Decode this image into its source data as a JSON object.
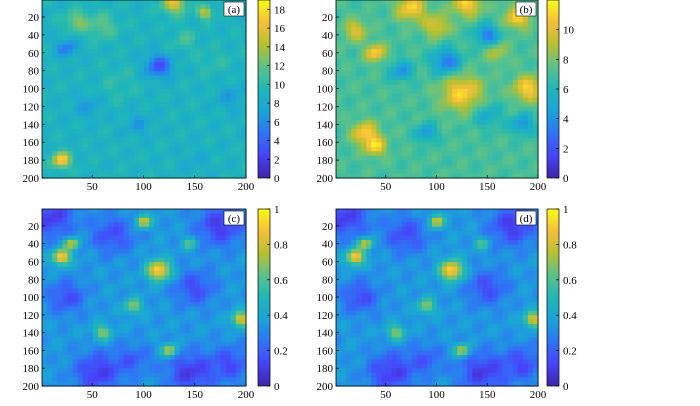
{
  "chart_data": [
    {
      "type": "heatmap",
      "panel_label": "(a)",
      "x_ticks": [
        50,
        100,
        150,
        200
      ],
      "y_ticks": [
        20,
        40,
        60,
        80,
        100,
        120,
        140,
        160,
        180,
        200
      ],
      "xlim": [
        1,
        200
      ],
      "ylim": [
        1,
        200
      ],
      "colorbar": {
        "min": 0,
        "max": 19,
        "ticks": [
          0,
          2,
          4,
          6,
          8,
          10,
          12,
          14,
          16,
          18
        ]
      },
      "base_value": 9,
      "features": [
        {
          "x": 20,
          "y": 180,
          "radius": 6,
          "value": 18
        },
        {
          "x": 130,
          "y": 5,
          "radius": 8,
          "value": 16
        },
        {
          "x": 160,
          "y": 15,
          "radius": 5,
          "value": 15
        },
        {
          "x": 35,
          "y": 25,
          "radius": 8,
          "value": 13
        },
        {
          "x": 60,
          "y": 30,
          "radius": 10,
          "value": 12
        },
        {
          "x": 140,
          "y": 45,
          "radius": 8,
          "value": 11
        },
        {
          "x": 115,
          "y": 75,
          "radius": 9,
          "value": 3
        },
        {
          "x": 25,
          "y": 55,
          "radius": 7,
          "value": 5
        },
        {
          "x": 45,
          "y": 120,
          "radius": 10,
          "value": 7
        },
        {
          "x": 95,
          "y": 140,
          "radius": 9,
          "value": 7
        },
        {
          "x": 185,
          "y": 110,
          "radius": 10,
          "value": 7
        },
        {
          "x": 150,
          "y": 180,
          "radius": 10,
          "value": 8
        },
        {
          "x": 75,
          "y": 95,
          "radius": 14,
          "value": 10
        },
        {
          "x": 170,
          "y": 70,
          "radius": 12,
          "value": 10
        }
      ]
    },
    {
      "type": "heatmap",
      "panel_label": "(b)",
      "x_ticks": [
        50,
        100,
        150,
        200
      ],
      "y_ticks": [
        20,
        40,
        60,
        80,
        100,
        120,
        140,
        160,
        180,
        200
      ],
      "xlim": [
        1,
        200
      ],
      "ylim": [
        1,
        200
      ],
      "colorbar": {
        "min": 0,
        "max": 12,
        "ticks": [
          0,
          2,
          4,
          6,
          8,
          10
        ]
      },
      "base_value": 7,
      "features": [
        {
          "x": 75,
          "y": 10,
          "radius": 10,
          "value": 11
        },
        {
          "x": 130,
          "y": 5,
          "radius": 10,
          "value": 11
        },
        {
          "x": 180,
          "y": 20,
          "radius": 9,
          "value": 11
        },
        {
          "x": 20,
          "y": 35,
          "radius": 8,
          "value": 10
        },
        {
          "x": 100,
          "y": 30,
          "radius": 9,
          "value": 10
        },
        {
          "x": 40,
          "y": 60,
          "radius": 7,
          "value": 11
        },
        {
          "x": 125,
          "y": 105,
          "radius": 14,
          "value": 11
        },
        {
          "x": 190,
          "y": 100,
          "radius": 10,
          "value": 11
        },
        {
          "x": 30,
          "y": 150,
          "radius": 9,
          "value": 11
        },
        {
          "x": 40,
          "y": 165,
          "radius": 7,
          "value": 11
        },
        {
          "x": 160,
          "y": 60,
          "radius": 8,
          "value": 9
        },
        {
          "x": 150,
          "y": 40,
          "radius": 8,
          "value": 3
        },
        {
          "x": 110,
          "y": 70,
          "radius": 10,
          "value": 3
        },
        {
          "x": 65,
          "y": 80,
          "radius": 8,
          "value": 4
        },
        {
          "x": 90,
          "y": 150,
          "radius": 7,
          "value": 4
        },
        {
          "x": 185,
          "y": 140,
          "radius": 8,
          "value": 4
        },
        {
          "x": 150,
          "y": 130,
          "radius": 10,
          "value": 5
        }
      ]
    },
    {
      "type": "heatmap",
      "panel_label": "(c)",
      "x_ticks": [
        50,
        100,
        150,
        200
      ],
      "y_ticks": [
        20,
        40,
        60,
        80,
        100,
        120,
        140,
        160,
        180,
        200
      ],
      "xlim": [
        1,
        200
      ],
      "ylim": [
        1,
        200
      ],
      "colorbar": {
        "min": 0,
        "max": 1,
        "ticks": [
          0,
          0.2,
          0.4,
          0.6,
          0.8,
          1
        ]
      },
      "base_value": 0.35,
      "features": [
        {
          "x": 20,
          "y": 55,
          "radius": 6,
          "value": 0.95
        },
        {
          "x": 115,
          "y": 70,
          "radius": 8,
          "value": 0.95
        },
        {
          "x": 100,
          "y": 15,
          "radius": 5,
          "value": 0.85
        },
        {
          "x": 30,
          "y": 40,
          "radius": 5,
          "value": 0.8
        },
        {
          "x": 195,
          "y": 125,
          "radius": 6,
          "value": 0.85
        },
        {
          "x": 125,
          "y": 160,
          "radius": 5,
          "value": 0.8
        },
        {
          "x": 60,
          "y": 140,
          "radius": 6,
          "value": 0.7
        },
        {
          "x": 90,
          "y": 110,
          "radius": 6,
          "value": 0.7
        },
        {
          "x": 145,
          "y": 40,
          "radius": 5,
          "value": 0.6
        },
        {
          "x": 10,
          "y": 10,
          "radius": 16,
          "value": 0.1
        },
        {
          "x": 70,
          "y": 30,
          "radius": 15,
          "value": 0.15
        },
        {
          "x": 175,
          "y": 20,
          "radius": 16,
          "value": 0.1
        },
        {
          "x": 150,
          "y": 90,
          "radius": 14,
          "value": 0.15
        },
        {
          "x": 25,
          "y": 100,
          "radius": 13,
          "value": 0.15
        },
        {
          "x": 55,
          "y": 185,
          "radius": 16,
          "value": 0.1
        },
        {
          "x": 145,
          "y": 185,
          "radius": 16,
          "value": 0.1
        },
        {
          "x": 185,
          "y": 175,
          "radius": 14,
          "value": 0.15
        },
        {
          "x": 90,
          "y": 170,
          "radius": 12,
          "value": 0.2
        }
      ]
    },
    {
      "type": "heatmap",
      "panel_label": "(d)",
      "x_ticks": [
        50,
        100,
        150,
        200
      ],
      "y_ticks": [
        20,
        40,
        60,
        80,
        100,
        120,
        140,
        160,
        180,
        200
      ],
      "xlim": [
        1,
        200
      ],
      "ylim": [
        1,
        200
      ],
      "colorbar": {
        "min": 0,
        "max": 1,
        "ticks": [
          0,
          0.2,
          0.4,
          0.6,
          0.8,
          1
        ]
      },
      "base_value": 0.35,
      "features": [
        {
          "x": 20,
          "y": 55,
          "radius": 6,
          "value": 0.95
        },
        {
          "x": 115,
          "y": 70,
          "radius": 8,
          "value": 0.95
        },
        {
          "x": 100,
          "y": 15,
          "radius": 5,
          "value": 0.85
        },
        {
          "x": 30,
          "y": 40,
          "radius": 5,
          "value": 0.8
        },
        {
          "x": 195,
          "y": 125,
          "radius": 6,
          "value": 0.85
        },
        {
          "x": 125,
          "y": 160,
          "radius": 5,
          "value": 0.8
        },
        {
          "x": 60,
          "y": 140,
          "radius": 6,
          "value": 0.7
        },
        {
          "x": 90,
          "y": 110,
          "radius": 6,
          "value": 0.7
        },
        {
          "x": 145,
          "y": 40,
          "radius": 5,
          "value": 0.6
        },
        {
          "x": 10,
          "y": 10,
          "radius": 16,
          "value": 0.1
        },
        {
          "x": 70,
          "y": 30,
          "radius": 15,
          "value": 0.15
        },
        {
          "x": 175,
          "y": 20,
          "radius": 16,
          "value": 0.1
        },
        {
          "x": 150,
          "y": 90,
          "radius": 14,
          "value": 0.15
        },
        {
          "x": 25,
          "y": 100,
          "radius": 13,
          "value": 0.15
        },
        {
          "x": 55,
          "y": 185,
          "radius": 16,
          "value": 0.1
        },
        {
          "x": 145,
          "y": 185,
          "radius": 16,
          "value": 0.1
        },
        {
          "x": 185,
          "y": 175,
          "radius": 14,
          "value": 0.15
        },
        {
          "x": 90,
          "y": 170,
          "radius": 12,
          "value": 0.2
        }
      ]
    }
  ],
  "colormap": [
    "#3e26a8",
    "#4743f8",
    "#2f74f6",
    "#1ba3d8",
    "#1fb7b7",
    "#5ac28b",
    "#b6c131",
    "#f6bf3b",
    "#f9fb15"
  ]
}
